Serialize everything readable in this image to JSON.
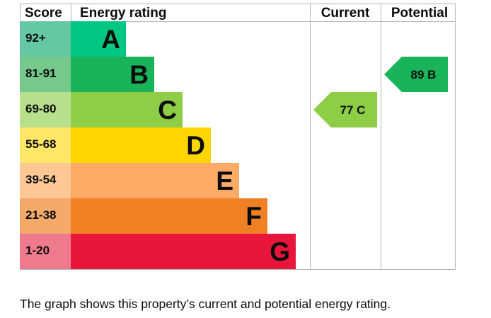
{
  "headers": {
    "score": "Score",
    "energy_rating": "Energy rating",
    "current": "Current",
    "potential": "Potential"
  },
  "chart_data": {
    "type": "bar",
    "bands": [
      {
        "score": "92+",
        "letter": "A",
        "color": "#00c781",
        "score_bg": "#64c9a3",
        "text_color": "#0b0c0c"
      },
      {
        "score": "81-91",
        "letter": "B",
        "color": "#19b459",
        "score_bg": "#76c98c",
        "text_color": "#0b0c0c"
      },
      {
        "score": "69-80",
        "letter": "C",
        "color": "#8dce46",
        "score_bg": "#b8e08c",
        "text_color": "#0b0c0c"
      },
      {
        "score": "55-68",
        "letter": "D",
        "color": "#ffd500",
        "score_bg": "#ffe666",
        "text_color": "#0b0c0c"
      },
      {
        "score": "39-54",
        "letter": "E",
        "color": "#fcaa65",
        "score_bg": "#fdc894",
        "text_color": "#0b0c0c"
      },
      {
        "score": "21-38",
        "letter": "F",
        "color": "#ef8023",
        "score_bg": "#f4a96b",
        "text_color": "#0b0c0c"
      },
      {
        "score": "1-20",
        "letter": "G",
        "color": "#e9153b",
        "score_bg": "#f07a8d",
        "text_color": "#0b0c0c"
      }
    ],
    "current": {
      "value": 77,
      "letter": "C",
      "label": "77 C",
      "color": "#8dce46"
    },
    "potential": {
      "value": 89,
      "letter": "B",
      "label": "89 B",
      "color": "#19b459"
    }
  },
  "caption": "The graph shows this property’s current and potential energy rating."
}
